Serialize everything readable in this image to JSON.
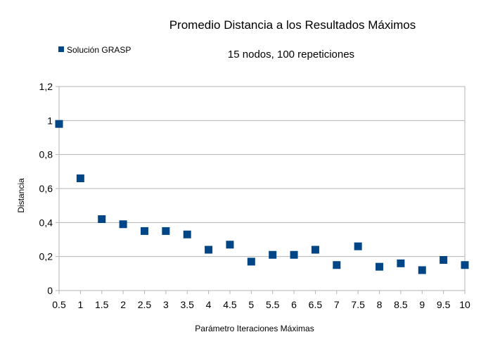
{
  "chart_data": {
    "type": "scatter",
    "title": "Promedio Distancia a los Resultados Máximos",
    "subtitle": "15 nodos, 100 repeticiones",
    "xlabel": "Parámetro Iteraciones Máximas",
    "ylabel": "Distancia",
    "xlim": [
      0.5,
      10
    ],
    "ylim": [
      0,
      1.2
    ],
    "x_ticks": [
      "0.5",
      "1",
      "1.5",
      "2",
      "2.5",
      "3",
      "3.5",
      "4",
      "4.5",
      "5",
      "5.5",
      "6",
      "6.5",
      "7",
      "7.5",
      "8",
      "8.5",
      "9",
      "9.5",
      "10"
    ],
    "y_ticks": [
      "0",
      "0,2",
      "0,4",
      "0,6",
      "0,8",
      "1",
      "1,2"
    ],
    "grid": "horizontal",
    "legend_position": "top-left",
    "series": [
      {
        "name": "Solución GRASP",
        "color": "#004586",
        "marker": "square",
        "x": [
          0.5,
          1,
          1.5,
          2,
          2.5,
          3,
          3.5,
          4,
          4.5,
          5,
          5.5,
          6,
          6.5,
          7,
          7.5,
          8,
          8.5,
          9,
          9.5,
          10
        ],
        "y": [
          0.98,
          0.66,
          0.42,
          0.39,
          0.35,
          0.35,
          0.33,
          0.24,
          0.27,
          0.17,
          0.21,
          0.21,
          0.24,
          0.15,
          0.26,
          0.14,
          0.16,
          0.12,
          0.18,
          0.15
        ]
      }
    ]
  }
}
